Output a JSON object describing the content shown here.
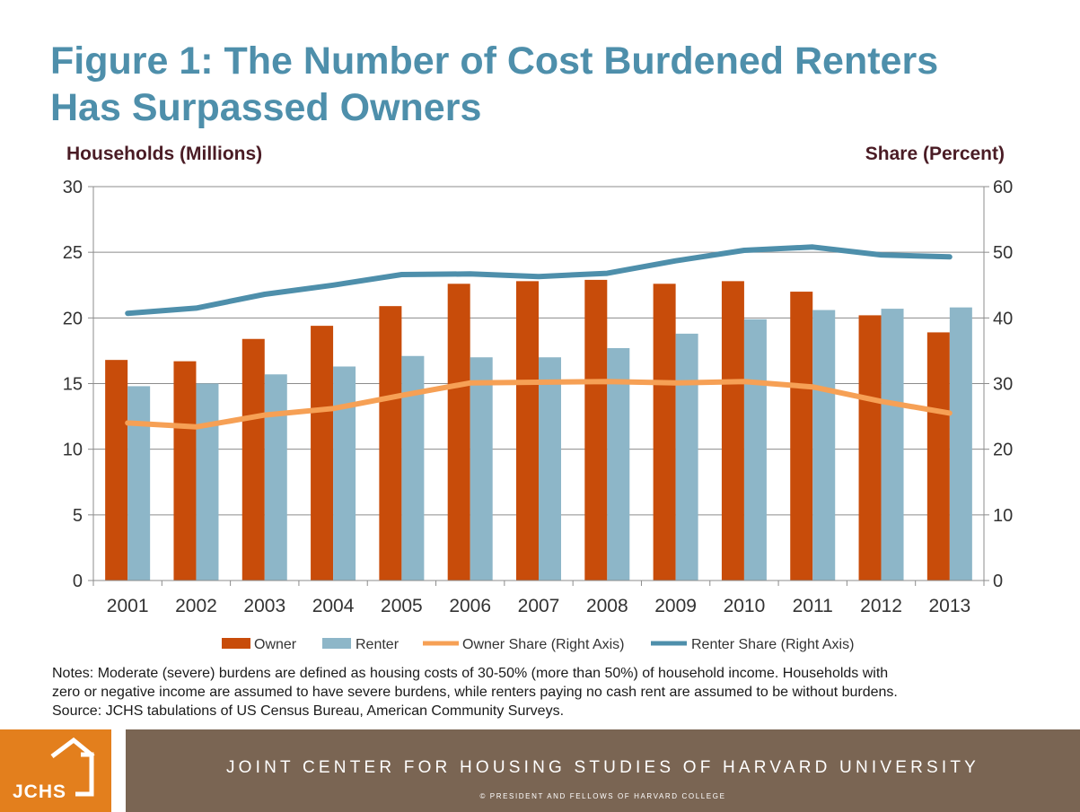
{
  "title_lines": [
    "Figure 1: The Number of Cost Burdened Renters",
    "Has Surpassed Owners"
  ],
  "colors": {
    "title": "#4e8fab",
    "owner": "#c84c0a",
    "renter": "#8db6c8",
    "owner_share": "#f6a055",
    "renter_share": "#4e8fab",
    "footer_band": "#7a6553",
    "logo": "#e37f1d"
  },
  "chart_data": {
    "type": "bar",
    "categories": [
      "2001",
      "2002",
      "2003",
      "2004",
      "2005",
      "2006",
      "2007",
      "2008",
      "2009",
      "2010",
      "2011",
      "2012",
      "2013"
    ],
    "series": [
      {
        "name": "Owner",
        "type": "bar",
        "axis": "left",
        "values": [
          16.8,
          16.7,
          18.4,
          19.4,
          20.9,
          22.6,
          22.8,
          22.9,
          22.6,
          22.8,
          22.0,
          20.2,
          18.9
        ]
      },
      {
        "name": "Renter",
        "type": "bar",
        "axis": "left",
        "values": [
          14.8,
          15.0,
          15.7,
          16.3,
          17.1,
          17.0,
          17.0,
          17.7,
          18.8,
          19.9,
          20.6,
          20.7,
          20.8
        ]
      },
      {
        "name": "Owner Share (Right Axis)",
        "type": "line",
        "axis": "right",
        "values": [
          24.0,
          23.4,
          25.2,
          26.2,
          28.2,
          30.1,
          30.2,
          30.3,
          30.1,
          30.3,
          29.5,
          27.3,
          25.5
        ]
      },
      {
        "name": "Renter Share (Right Axis)",
        "type": "line",
        "axis": "right",
        "values": [
          40.7,
          41.5,
          43.6,
          45.0,
          46.6,
          46.7,
          46.3,
          46.8,
          48.7,
          50.3,
          50.8,
          49.6,
          49.3
        ]
      }
    ],
    "ylabel": "Households (Millions)",
    "ylabel_right": "Share (Percent)",
    "ylim": [
      0,
      30
    ],
    "yticks": [
      "0",
      "5",
      "10",
      "15",
      "20",
      "25",
      "30"
    ],
    "ylim_right": [
      0,
      60
    ],
    "yticks_right": [
      "0",
      "10",
      "20",
      "30",
      "40",
      "50",
      "60"
    ],
    "grid": true,
    "legend_position": "bottom"
  },
  "notes": [
    "Notes: Moderate (severe) burdens are defined as housing costs of 30-50% (more than 50%) of household income. Households with",
    "zero or negative income are assumed to have severe burdens, while renters paying no cash rent are assumed to be without burdens.",
    "Source: JCHS tabulations of US Census Bureau, American Community Surveys."
  ],
  "footer": {
    "logo_text": "JCHS",
    "title": "JOINT CENTER FOR HOUSING STUDIES OF HARVARD UNIVERSITY",
    "subtitle": "© PRESIDENT AND FELLOWS OF HARVARD COLLEGE"
  }
}
